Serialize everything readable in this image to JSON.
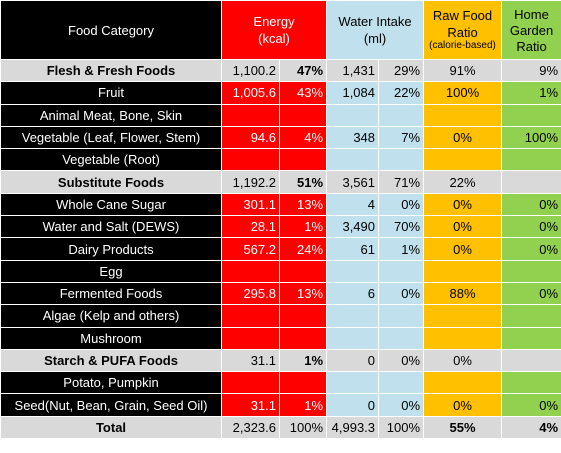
{
  "header": {
    "food_category": "Food Category",
    "energy": [
      "Energy",
      "(kcal)"
    ],
    "water": [
      "Water Intake",
      "(ml)"
    ],
    "raw_food": [
      "Raw Food",
      "Ratio",
      "(calorie-based)"
    ],
    "home_garden": [
      "Home",
      "Garden",
      "Ratio"
    ]
  },
  "rows": [
    {
      "label": "Flesh & Fresh Foods",
      "kind": "group",
      "energy": "1,100.2",
      "energy_pct": "47%",
      "water": "1,431",
      "water_pct": "29%",
      "raw": "91%",
      "home": "9%"
    },
    {
      "label": "Fruit",
      "kind": "item",
      "energy": "1,005.6",
      "energy_pct": "43%",
      "water": "1,084",
      "water_pct": "22%",
      "raw": "100%",
      "home": "1%"
    },
    {
      "label": "Animal Meat, Bone, Skin",
      "kind": "item",
      "energy": "",
      "energy_pct": "",
      "water": "",
      "water_pct": "",
      "raw": "",
      "home": ""
    },
    {
      "label": "Vegetable (Leaf, Flower, Stem)",
      "kind": "item",
      "energy": "94.6",
      "energy_pct": "4%",
      "water": "348",
      "water_pct": "7%",
      "raw": "0%",
      "home": "100%"
    },
    {
      "label": "Vegetable (Root)",
      "kind": "item",
      "energy": "",
      "energy_pct": "",
      "water": "",
      "water_pct": "",
      "raw": "",
      "home": ""
    },
    {
      "label": "Substitute Foods",
      "kind": "group",
      "energy": "1,192.2",
      "energy_pct": "51%",
      "water": "3,561",
      "water_pct": "71%",
      "raw": "22%",
      "home": ""
    },
    {
      "label": "Whole Cane Sugar",
      "kind": "item",
      "energy": "301.1",
      "energy_pct": "13%",
      "water": "4",
      "water_pct": "0%",
      "raw": "0%",
      "home": "0%"
    },
    {
      "label": "Water and Salt (DEWS)",
      "kind": "item",
      "energy": "28.1",
      "energy_pct": "1%",
      "water": "3,490",
      "water_pct": "70%",
      "raw": "0%",
      "home": "0%"
    },
    {
      "label": "Dairy Products",
      "kind": "item",
      "energy": "567.2",
      "energy_pct": "24%",
      "water": "61",
      "water_pct": "1%",
      "raw": "0%",
      "home": "0%"
    },
    {
      "label": "Egg",
      "kind": "item",
      "energy": "",
      "energy_pct": "",
      "water": "",
      "water_pct": "",
      "raw": "",
      "home": ""
    },
    {
      "label": "Fermented Foods",
      "kind": "item",
      "energy": "295.8",
      "energy_pct": "13%",
      "water": "6",
      "water_pct": "0%",
      "raw": "88%",
      "home": "0%"
    },
    {
      "label": "Algae (Kelp and others)",
      "kind": "item",
      "energy": "",
      "energy_pct": "",
      "water": "",
      "water_pct": "",
      "raw": "",
      "home": ""
    },
    {
      "label": "Mushroom",
      "kind": "item",
      "energy": "",
      "energy_pct": "",
      "water": "",
      "water_pct": "",
      "raw": "",
      "home": ""
    },
    {
      "label": "Starch & PUFA Foods",
      "kind": "group",
      "energy": "31.1",
      "energy_pct": "1%",
      "water": "0",
      "water_pct": "0%",
      "raw": "0%",
      "home": ""
    },
    {
      "label": "Potato, Pumpkin",
      "kind": "item",
      "energy": "",
      "energy_pct": "",
      "water": "",
      "water_pct": "",
      "raw": "",
      "home": ""
    },
    {
      "label": "Seed(Nut, Bean, Grain, Seed Oil)",
      "kind": "item",
      "energy": "31.1",
      "energy_pct": "1%",
      "water": "0",
      "water_pct": "0%",
      "raw": "0%",
      "home": "0%"
    },
    {
      "label": "Total",
      "kind": "total",
      "energy": "2,323.6",
      "energy_pct": "100%",
      "water": "4,993.3",
      "water_pct": "100%",
      "raw": "55%",
      "home": "4%"
    }
  ],
  "colors": {
    "label_dark": "#000000",
    "label_group": "#d9d9d9",
    "energy": "#ff0000",
    "water": "#bfe0ec",
    "raw": "#ffc000",
    "home": "#92d050"
  }
}
